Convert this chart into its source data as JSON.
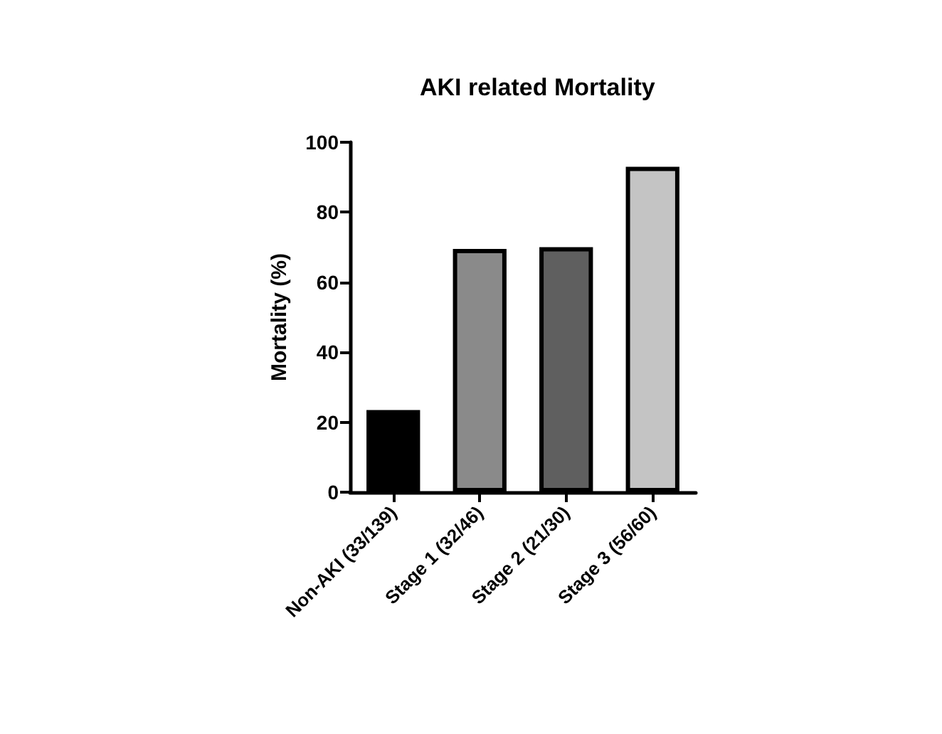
{
  "chart_data": {
    "type": "bar",
    "title": "AKI related Mortality",
    "ylabel": "Mortality (%)",
    "categories": [
      "Non-AKI (33/139)",
      "Stage 1 (32/46)",
      "Stage 2 (21/30)",
      "Stage 3 (56/60)"
    ],
    "values": [
      23.5,
      69.5,
      70,
      93
    ],
    "colors": [
      "#000000",
      "#8a8a8a",
      "#5f5f5f",
      "#c4c4c4"
    ],
    "ylim": [
      0,
      100
    ],
    "yticks": [
      0,
      20,
      40,
      60,
      80,
      100
    ],
    "grid": false
  }
}
